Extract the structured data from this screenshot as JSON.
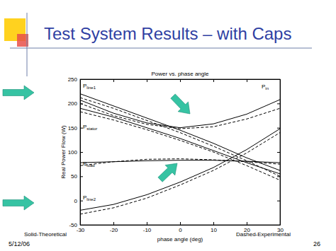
{
  "slide": {
    "title": "Test System Results – with Caps",
    "date": "5/12/06",
    "page": "26"
  },
  "chart_data": {
    "type": "line",
    "title": "Power vs. phase angle",
    "x_label": "phase angle (deg)",
    "y_label": "Real Power Flow (W)",
    "x": [
      -30,
      -20,
      -10,
      0,
      10,
      20,
      30
    ],
    "xlim": [
      -30,
      30
    ],
    "xticks": [
      -30,
      -20,
      -10,
      0,
      10,
      20,
      30
    ],
    "ylim": [
      -50,
      250
    ],
    "yticks": [
      -50,
      0,
      50,
      100,
      150,
      200,
      250
    ],
    "grid": false,
    "series": [
      {
        "color": "#000000",
        "line_style": "solid",
        "values": [
          207,
          180,
          160,
          150,
          158,
          178,
          208
        ]
      },
      {
        "color": "#000000",
        "line_style": "dashed",
        "values": [
          200,
          175,
          157,
          148,
          152,
          168,
          190
        ]
      },
      {
        "color": "#000000",
        "line_style": "solid",
        "values": [
          220,
          195,
          170,
          145,
          118,
          88,
          62
        ]
      },
      {
        "color": "#000000",
        "line_style": "dashed",
        "values": [
          212,
          190,
          165,
          140,
          112,
          82,
          50
        ]
      },
      {
        "color": "#000000",
        "line_style": "solid",
        "values": [
          190,
          172,
          150,
          128,
          103,
          78,
          55
        ]
      },
      {
        "color": "#000000",
        "line_style": "dashed",
        "values": [
          183,
          166,
          146,
          124,
          100,
          72,
          42
        ]
      },
      {
        "color": "#000000",
        "line_style": "solid",
        "values": [
          78,
          80,
          82,
          83,
          83,
          81,
          78
        ]
      },
      {
        "color": "#000000",
        "line_style": "dashed",
        "values": [
          72,
          80,
          85,
          86,
          84,
          80,
          75
        ]
      },
      {
        "color": "#000000",
        "line_style": "solid",
        "values": [
          -20,
          -8,
          12,
          38,
          68,
          105,
          148
        ]
      },
      {
        "color": "#000000",
        "line_style": "dashed",
        "values": [
          -28,
          -15,
          5,
          32,
          62,
          98,
          140
        ]
      }
    ],
    "annotations": [
      {
        "text": "P",
        "subscript": "line1"
      },
      {
        "text": "P",
        "subscript": "in"
      },
      {
        "text": "P",
        "subscript": "stator"
      },
      {
        "text": "P",
        "subscript": "load"
      },
      {
        "text": "P",
        "subscript": "line2"
      },
      {
        "text": "Solid-Theoretical"
      },
      {
        "text": "Dashed-Experimental"
      }
    ]
  }
}
